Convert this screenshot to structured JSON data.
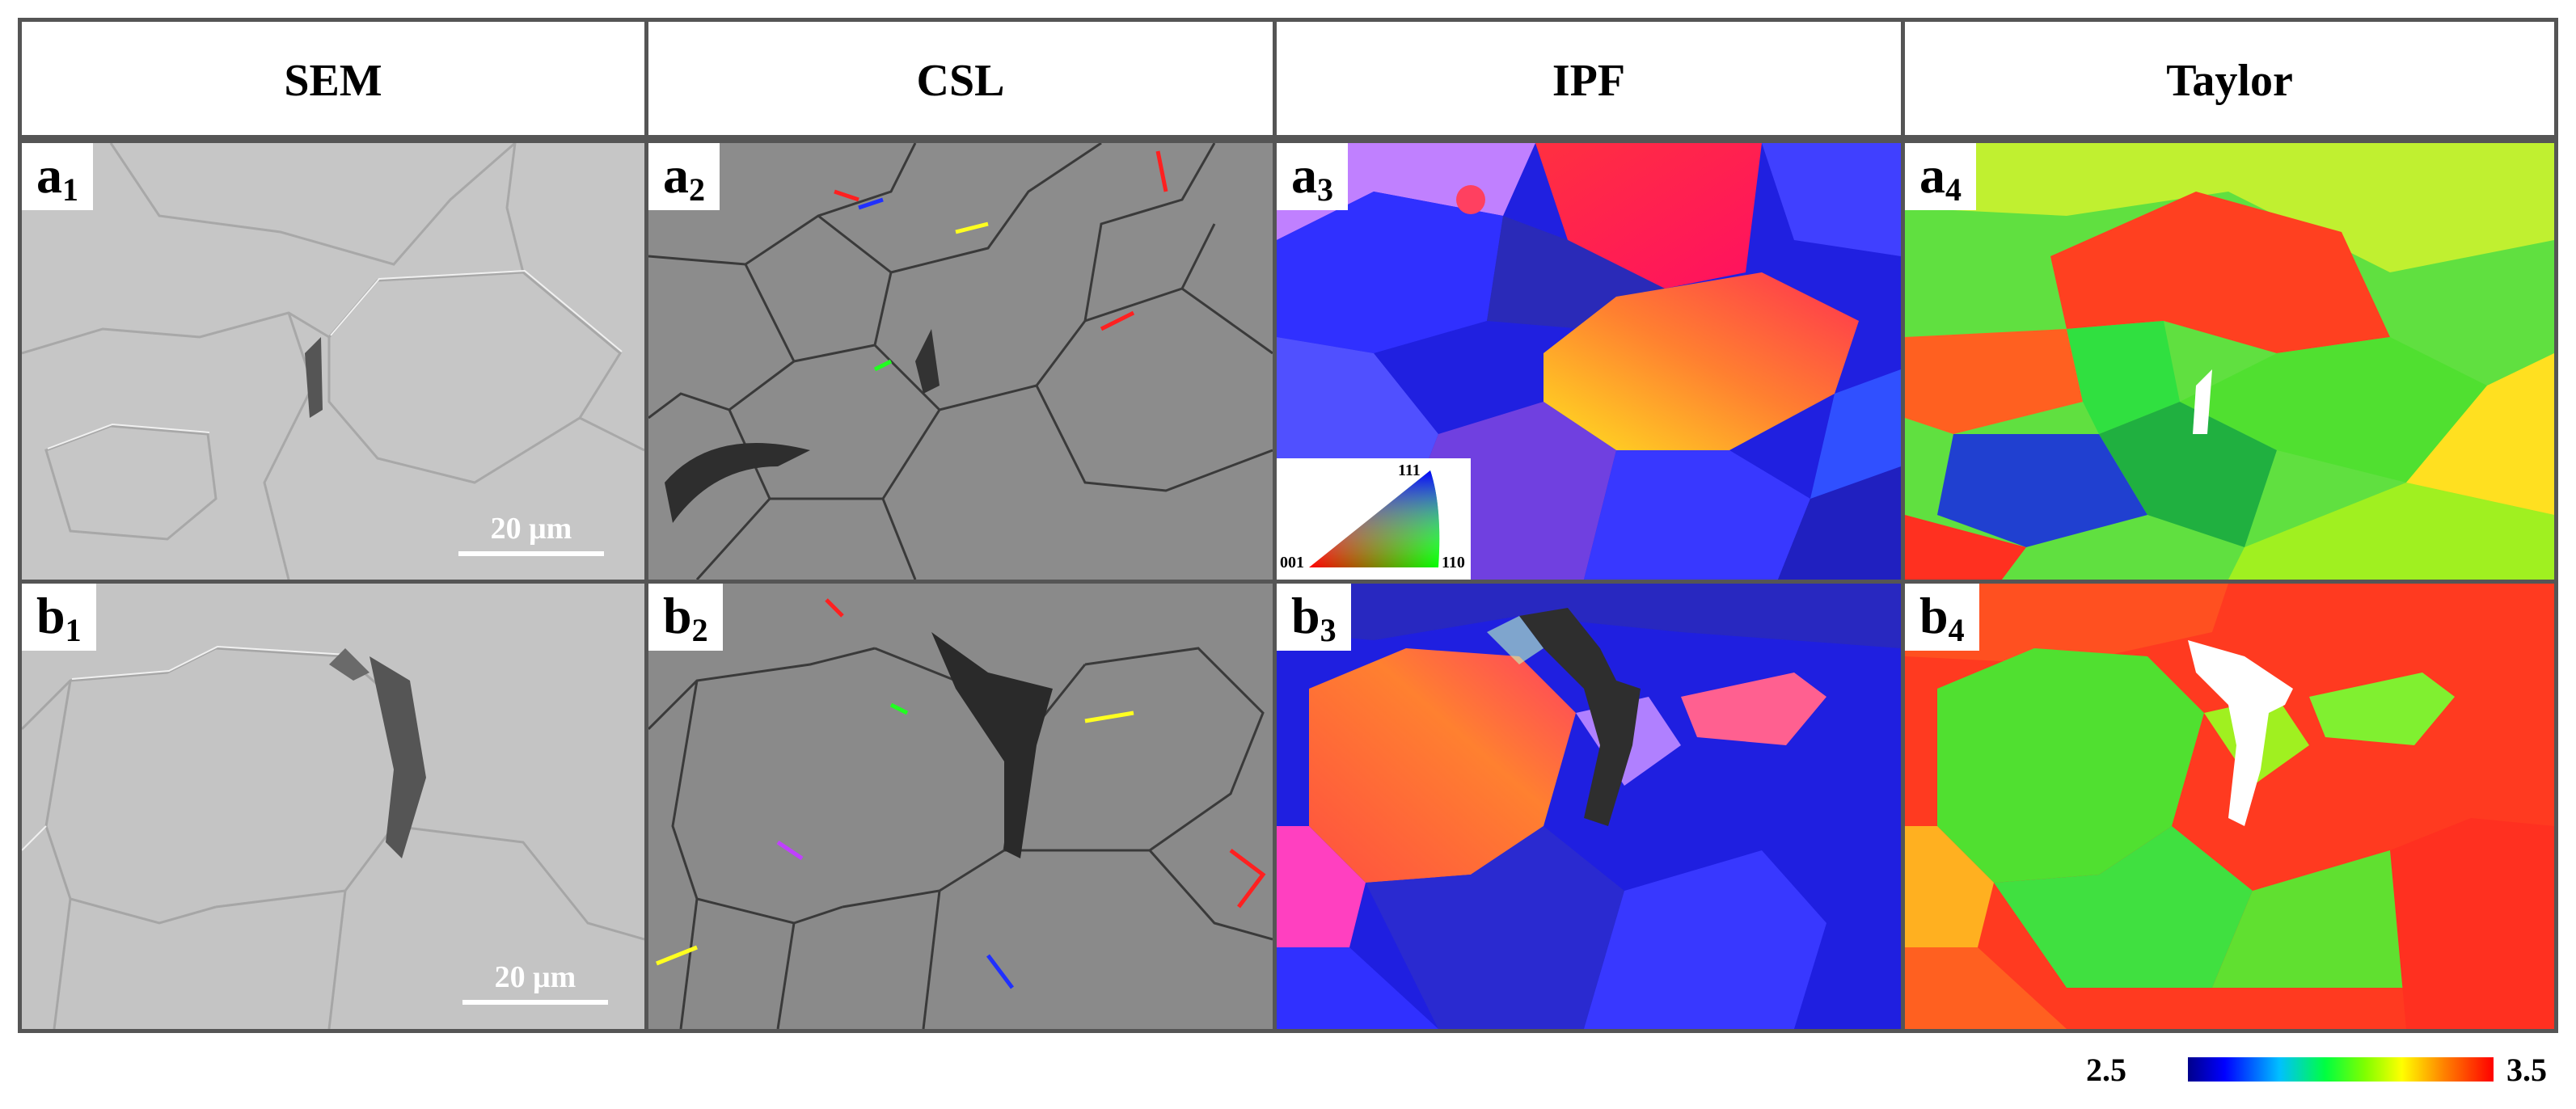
{
  "columns": [
    {
      "id": "sem",
      "header": "SEM"
    },
    {
      "id": "csl",
      "header": "CSL"
    },
    {
      "id": "ipf",
      "header": "IPF"
    },
    {
      "id": "taylor",
      "header": "Taylor"
    }
  ],
  "panels": {
    "a1": {
      "letter": "a",
      "sub": "1"
    },
    "a2": {
      "letter": "a",
      "sub": "2"
    },
    "a3": {
      "letter": "a",
      "sub": "3"
    },
    "a4": {
      "letter": "a",
      "sub": "4"
    },
    "b1": {
      "letter": "b",
      "sub": "1"
    },
    "b2": {
      "letter": "b",
      "sub": "2"
    },
    "b3": {
      "letter": "b",
      "sub": "3"
    },
    "b4": {
      "letter": "b",
      "sub": "4"
    }
  },
  "scale_bar": {
    "a1": "20 μm",
    "b1": "20 μm"
  },
  "ipf_key": {
    "top": "111",
    "left": "001",
    "right": "110"
  },
  "colorbar": {
    "min": "2.5",
    "max": "3.5",
    "colors": [
      "#00008b",
      "#0000ff",
      "#00c0ff",
      "#00ff40",
      "#80ff00",
      "#ffff00",
      "#ff8000",
      "#ff0000"
    ]
  }
}
